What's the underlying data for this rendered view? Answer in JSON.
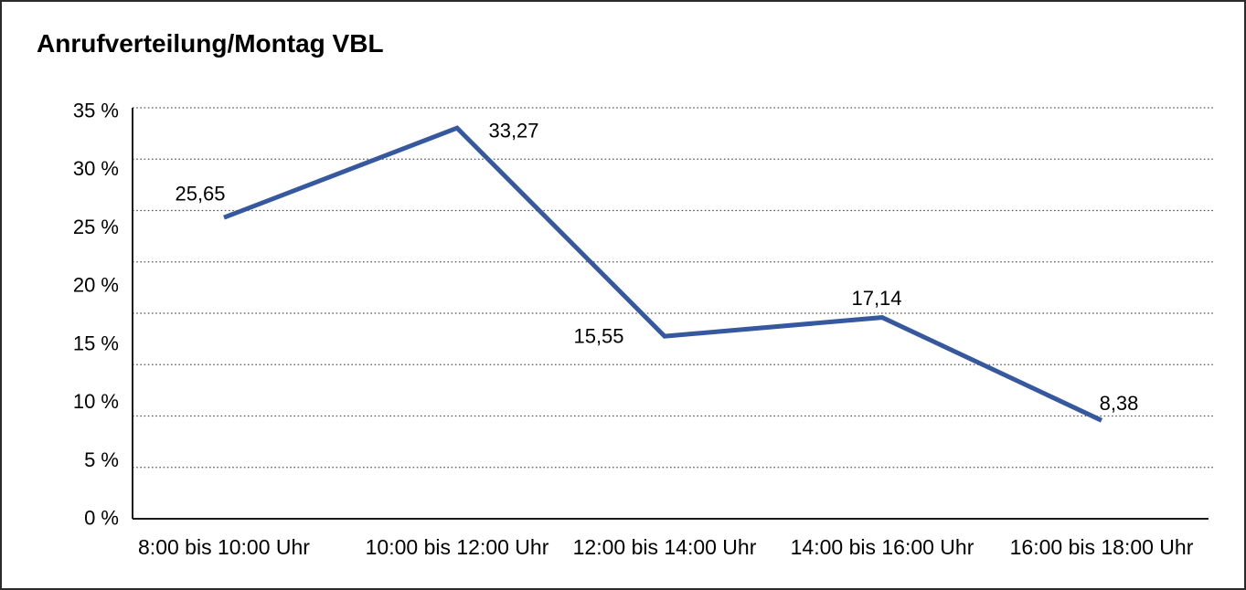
{
  "frame": {
    "background": "#ffffff",
    "border_color": "#2b2b2b"
  },
  "chart_data": {
    "type": "line",
    "title": "Anrufverteilung/Montag VBL",
    "categories": [
      "8:00 bis 10:00 Uhr",
      "10:00 bis 12:00 Uhr",
      "12:00 bis 14:00 Uhr",
      "14:00 bis 16:00 Uhr",
      "16:00 bis 18:00 Uhr"
    ],
    "values": [
      25.65,
      33.27,
      15.55,
      17.14,
      8.38
    ],
    "value_labels": [
      "25,65",
      "33,27",
      "15,55",
      "17,14",
      "8,38"
    ],
    "y_tick_labels": [
      "35 %",
      "30 %",
      "25 %",
      "20 %",
      "15 %",
      "10 %",
      "5 %",
      "0 %"
    ],
    "y_tick_values": [
      35,
      30,
      25,
      20,
      15,
      10,
      5,
      0
    ],
    "ylim": [
      0,
      35
    ],
    "xlabel": "",
    "ylabel": "",
    "grid": "horizontal-dotted",
    "legend": "none",
    "colors": {
      "line": "#35589E",
      "text": "#000000",
      "axis": "#1a1a1a",
      "gridline": "#555555"
    }
  }
}
